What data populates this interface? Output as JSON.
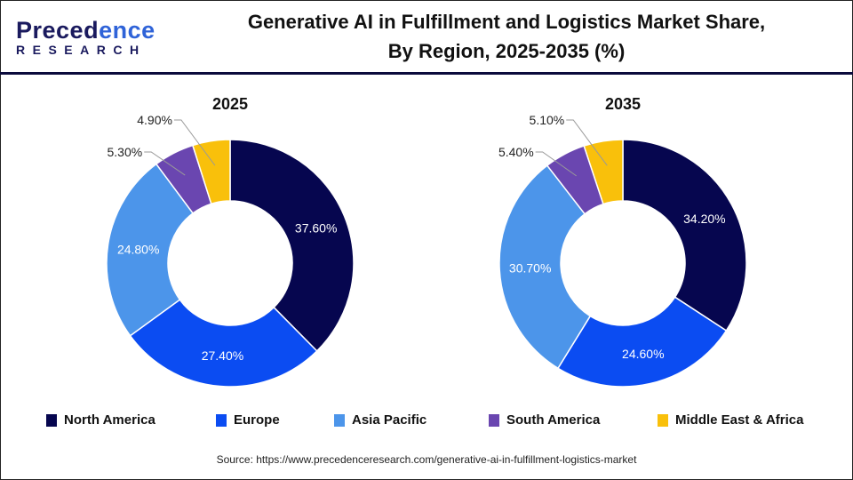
{
  "logo": {
    "text": "Precedence",
    "sub": "RESEARCH"
  },
  "title_line1": "Generative AI in Fulfillment and Logistics Market Share,",
  "title_line2": "By Region, 2025-2035 (%)",
  "source": "Source: https://www.precedenceresearch.com/generative-ai-in-fulfillment-logistics-market",
  "chart_data": [
    {
      "type": "pie",
      "subtype": "donut",
      "title": "2025",
      "start": "12 o'clock, clockwise",
      "categories": [
        "North America",
        "Europe",
        "Asia Pacific",
        "South America",
        "Middle East & Africa"
      ],
      "values": [
        37.6,
        27.4,
        24.8,
        5.3,
        4.9
      ],
      "labels": [
        "37.60%",
        "27.40%",
        "24.80%",
        "5.30%",
        "4.90%"
      ]
    },
    {
      "type": "pie",
      "subtype": "donut",
      "title": "2035",
      "start": "12 o'clock, clockwise",
      "categories": [
        "North America",
        "Europe",
        "Asia Pacific",
        "South America",
        "Middle East & Africa"
      ],
      "values": [
        34.2,
        24.6,
        30.7,
        5.4,
        5.1
      ],
      "labels": [
        "34.20%",
        "24.60%",
        "30.70%",
        "5.40%",
        "5.10%"
      ]
    }
  ],
  "legend": [
    "North America",
    "Europe",
    "Asia Pacific",
    "South America",
    "Middle East & Africa"
  ],
  "colors": [
    "#06064f",
    "#0b4cf2",
    "#4c95ea",
    "#6a46b0",
    "#f9c00b"
  ],
  "legend_position": "bottom"
}
